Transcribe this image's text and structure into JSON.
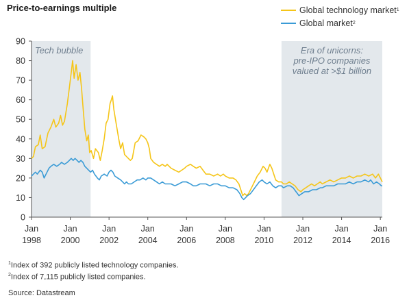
{
  "title": "Price-to-earnings multiple",
  "legend": [
    {
      "label": "Global technology market",
      "sup": "1",
      "color": "#f5c518"
    },
    {
      "label": "Global market",
      "sup": "2",
      "color": "#3a9bd6"
    }
  ],
  "footnotes": [
    {
      "sup": "1",
      "text": "Index of 392 publicly listed technology companies."
    },
    {
      "sup": "2",
      "text": "Index of 7,115 publicly listed companies."
    }
  ],
  "source": "Source: Datastream",
  "chart_data": {
    "type": "line",
    "title": "Price-to-earnings multiple",
    "xlabel": "",
    "ylabel": "",
    "xlim": [
      1998,
      2016.1
    ],
    "ylim": [
      0,
      90
    ],
    "yticks": [
      0,
      10,
      20,
      30,
      40,
      50,
      60,
      70,
      80,
      90
    ],
    "xticks": [
      {
        "value": 1998,
        "line1": "Jan",
        "line2": "1998"
      },
      {
        "value": 2000,
        "line1": "Jan",
        "line2": "2000"
      },
      {
        "value": 2002,
        "line1": "Jan",
        "line2": "2002"
      },
      {
        "value": 2004,
        "line1": "Jan",
        "line2": "2004"
      },
      {
        "value": 2006,
        "line1": "Jan",
        "line2": "2006"
      },
      {
        "value": 2008,
        "line1": "Jan",
        "line2": "2008"
      },
      {
        "value": 2010,
        "line1": "Jan",
        "line2": "2010"
      },
      {
        "value": 2012,
        "line1": "Jan",
        "line2": "2012"
      },
      {
        "value": 2014,
        "line1": "Jan",
        "line2": "2014"
      },
      {
        "value": 2016,
        "line1": "Jan",
        "line2": "2016"
      }
    ],
    "grid": false,
    "shaded_regions": [
      {
        "from": 1998,
        "to": 2001.05,
        "label": [
          "Tech bubble"
        ],
        "label_align": "left"
      },
      {
        "from": 2010.9,
        "to": 2016.1,
        "label": [
          "Era of unicorns:",
          "pre-IPO companies",
          "valued at >$1 billion"
        ],
        "label_align": "center"
      }
    ],
    "series": [
      {
        "name": "Global technology market",
        "color": "#f5c518",
        "points": [
          [
            1998.0,
            30
          ],
          [
            1998.1,
            31
          ],
          [
            1998.2,
            36
          ],
          [
            1998.35,
            37
          ],
          [
            1998.45,
            42
          ],
          [
            1998.55,
            35
          ],
          [
            1998.7,
            36
          ],
          [
            1998.85,
            43
          ],
          [
            1999.0,
            46
          ],
          [
            1999.15,
            50
          ],
          [
            1999.25,
            46
          ],
          [
            1999.4,
            48
          ],
          [
            1999.5,
            52
          ],
          [
            1999.6,
            47
          ],
          [
            1999.7,
            49
          ],
          [
            1999.85,
            58
          ],
          [
            1999.95,
            66
          ],
          [
            2000.05,
            74
          ],
          [
            2000.12,
            80
          ],
          [
            2000.2,
            71
          ],
          [
            2000.3,
            78
          ],
          [
            2000.4,
            70
          ],
          [
            2000.5,
            74
          ],
          [
            2000.58,
            66
          ],
          [
            2000.65,
            57
          ],
          [
            2000.75,
            45
          ],
          [
            2000.85,
            39
          ],
          [
            2000.93,
            42
          ],
          [
            2001.0,
            33
          ],
          [
            2001.08,
            34
          ],
          [
            2001.2,
            30
          ],
          [
            2001.3,
            35
          ],
          [
            2001.45,
            33
          ],
          [
            2001.55,
            29
          ],
          [
            2001.65,
            34
          ],
          [
            2001.75,
            40
          ],
          [
            2001.85,
            48
          ],
          [
            2001.95,
            50
          ],
          [
            2002.05,
            58
          ],
          [
            2002.12,
            60
          ],
          [
            2002.18,
            62
          ],
          [
            2002.25,
            55
          ],
          [
            2002.35,
            49
          ],
          [
            2002.5,
            40
          ],
          [
            2002.6,
            35
          ],
          [
            2002.7,
            38
          ],
          [
            2002.8,
            32
          ],
          [
            2002.9,
            31
          ],
          [
            2003.0,
            30
          ],
          [
            2003.1,
            29
          ],
          [
            2003.2,
            30
          ],
          [
            2003.35,
            38
          ],
          [
            2003.5,
            39
          ],
          [
            2003.65,
            42
          ],
          [
            2003.8,
            41
          ],
          [
            2003.9,
            40
          ],
          [
            2004.0,
            38
          ],
          [
            2004.08,
            35
          ],
          [
            2004.15,
            30
          ],
          [
            2004.3,
            28
          ],
          [
            2004.45,
            27
          ],
          [
            2004.6,
            26
          ],
          [
            2004.75,
            27
          ],
          [
            2004.9,
            26
          ],
          [
            2005.0,
            27
          ],
          [
            2005.2,
            25
          ],
          [
            2005.4,
            24
          ],
          [
            2005.6,
            23
          ],
          [
            2005.75,
            24
          ],
          [
            2005.9,
            25
          ],
          [
            2006.0,
            26
          ],
          [
            2006.2,
            27
          ],
          [
            2006.35,
            26
          ],
          [
            2006.5,
            25
          ],
          [
            2006.7,
            26
          ],
          [
            2006.85,
            24
          ],
          [
            2007.0,
            22
          ],
          [
            2007.2,
            22
          ],
          [
            2007.4,
            21
          ],
          [
            2007.6,
            22
          ],
          [
            2007.75,
            21
          ],
          [
            2007.9,
            22
          ],
          [
            2008.0,
            21
          ],
          [
            2008.2,
            20
          ],
          [
            2008.4,
            20
          ],
          [
            2008.55,
            19
          ],
          [
            2008.7,
            17
          ],
          [
            2008.8,
            14
          ],
          [
            2008.9,
            11
          ],
          [
            2009.0,
            12
          ],
          [
            2009.1,
            11
          ],
          [
            2009.2,
            12
          ],
          [
            2009.35,
            15
          ],
          [
            2009.5,
            18
          ],
          [
            2009.65,
            21
          ],
          [
            2009.8,
            23
          ],
          [
            2009.95,
            26
          ],
          [
            2010.05,
            25
          ],
          [
            2010.15,
            23
          ],
          [
            2010.3,
            27
          ],
          [
            2010.4,
            25
          ],
          [
            2010.5,
            22
          ],
          [
            2010.6,
            19
          ],
          [
            2010.75,
            18
          ],
          [
            2010.9,
            18
          ],
          [
            2011.0,
            17
          ],
          [
            2011.15,
            17
          ],
          [
            2011.3,
            18
          ],
          [
            2011.45,
            17
          ],
          [
            2011.6,
            16
          ],
          [
            2011.75,
            14
          ],
          [
            2011.9,
            13
          ],
          [
            2012.0,
            14
          ],
          [
            2012.15,
            15
          ],
          [
            2012.3,
            16
          ],
          [
            2012.45,
            17
          ],
          [
            2012.6,
            16
          ],
          [
            2012.75,
            17
          ],
          [
            2012.9,
            18
          ],
          [
            2013.0,
            17
          ],
          [
            2013.2,
            18
          ],
          [
            2013.4,
            19
          ],
          [
            2013.6,
            18
          ],
          [
            2013.8,
            19
          ],
          [
            2014.0,
            20
          ],
          [
            2014.2,
            20
          ],
          [
            2014.4,
            21
          ],
          [
            2014.6,
            20
          ],
          [
            2014.8,
            21
          ],
          [
            2015.0,
            21
          ],
          [
            2015.2,
            22
          ],
          [
            2015.4,
            21
          ],
          [
            2015.6,
            22
          ],
          [
            2015.75,
            20
          ],
          [
            2015.9,
            22
          ],
          [
            2016.0,
            20
          ],
          [
            2016.1,
            18
          ]
        ]
      },
      {
        "name": "Global market",
        "color": "#3a9bd6",
        "points": [
          [
            1998.0,
            21
          ],
          [
            1998.1,
            22
          ],
          [
            1998.2,
            23
          ],
          [
            1998.3,
            22
          ],
          [
            1998.45,
            24
          ],
          [
            1998.55,
            23
          ],
          [
            1998.65,
            20
          ],
          [
            1998.75,
            22
          ],
          [
            1998.9,
            25
          ],
          [
            1999.0,
            26
          ],
          [
            1999.15,
            27
          ],
          [
            1999.3,
            26
          ],
          [
            1999.45,
            27
          ],
          [
            1999.55,
            28
          ],
          [
            1999.7,
            27
          ],
          [
            1999.85,
            28
          ],
          [
            1999.95,
            29
          ],
          [
            2000.05,
            30
          ],
          [
            2000.15,
            29
          ],
          [
            2000.25,
            30
          ],
          [
            2000.35,
            29
          ],
          [
            2000.45,
            28
          ],
          [
            2000.55,
            29
          ],
          [
            2000.65,
            28
          ],
          [
            2000.75,
            26
          ],
          [
            2000.85,
            25
          ],
          [
            2000.95,
            24
          ],
          [
            2001.05,
            23
          ],
          [
            2001.15,
            24
          ],
          [
            2001.25,
            22
          ],
          [
            2001.4,
            20
          ],
          [
            2001.5,
            19
          ],
          [
            2001.6,
            21
          ],
          [
            2001.75,
            22
          ],
          [
            2001.9,
            21
          ],
          [
            2002.0,
            23
          ],
          [
            2002.1,
            24
          ],
          [
            2002.2,
            23
          ],
          [
            2002.3,
            21
          ],
          [
            2002.45,
            20
          ],
          [
            2002.6,
            19
          ],
          [
            2002.7,
            18
          ],
          [
            2002.8,
            17
          ],
          [
            2002.9,
            18
          ],
          [
            2003.0,
            17
          ],
          [
            2003.15,
            17
          ],
          [
            2003.3,
            18
          ],
          [
            2003.45,
            19
          ],
          [
            2003.6,
            19
          ],
          [
            2003.75,
            20
          ],
          [
            2003.9,
            19
          ],
          [
            2004.0,
            20
          ],
          [
            2004.15,
            20
          ],
          [
            2004.3,
            19
          ],
          [
            2004.45,
            18
          ],
          [
            2004.6,
            17
          ],
          [
            2004.75,
            18
          ],
          [
            2004.9,
            17
          ],
          [
            2005.0,
            17
          ],
          [
            2005.2,
            17
          ],
          [
            2005.4,
            16
          ],
          [
            2005.6,
            17
          ],
          [
            2005.8,
            18
          ],
          [
            2006.0,
            18
          ],
          [
            2006.2,
            17
          ],
          [
            2006.35,
            16
          ],
          [
            2006.5,
            16
          ],
          [
            2006.7,
            17
          ],
          [
            2006.9,
            17
          ],
          [
            2007.0,
            17
          ],
          [
            2007.2,
            16
          ],
          [
            2007.4,
            17
          ],
          [
            2007.6,
            17
          ],
          [
            2007.8,
            16
          ],
          [
            2008.0,
            16
          ],
          [
            2008.2,
            15
          ],
          [
            2008.4,
            15
          ],
          [
            2008.6,
            14
          ],
          [
            2008.75,
            12
          ],
          [
            2008.85,
            10
          ],
          [
            2008.95,
            9
          ],
          [
            2009.05,
            10
          ],
          [
            2009.15,
            11
          ],
          [
            2009.3,
            12
          ],
          [
            2009.45,
            14
          ],
          [
            2009.6,
            16
          ],
          [
            2009.75,
            18
          ],
          [
            2009.9,
            19
          ],
          [
            2010.0,
            18
          ],
          [
            2010.15,
            17
          ],
          [
            2010.3,
            18
          ],
          [
            2010.45,
            16
          ],
          [
            2010.6,
            15
          ],
          [
            2010.75,
            16
          ],
          [
            2010.9,
            16
          ],
          [
            2011.0,
            15
          ],
          [
            2011.2,
            16
          ],
          [
            2011.35,
            16
          ],
          [
            2011.5,
            15
          ],
          [
            2011.65,
            13
          ],
          [
            2011.8,
            11
          ],
          [
            2011.95,
            12
          ],
          [
            2012.1,
            13
          ],
          [
            2012.3,
            13
          ],
          [
            2012.5,
            14
          ],
          [
            2012.7,
            14
          ],
          [
            2012.9,
            15
          ],
          [
            2013.0,
            15
          ],
          [
            2013.2,
            16
          ],
          [
            2013.4,
            16
          ],
          [
            2013.6,
            16
          ],
          [
            2013.8,
            17
          ],
          [
            2014.0,
            17
          ],
          [
            2014.2,
            17
          ],
          [
            2014.4,
            18
          ],
          [
            2014.6,
            17
          ],
          [
            2014.8,
            18
          ],
          [
            2015.0,
            18
          ],
          [
            2015.2,
            19
          ],
          [
            2015.4,
            18
          ],
          [
            2015.5,
            19
          ],
          [
            2015.65,
            17
          ],
          [
            2015.8,
            18
          ],
          [
            2015.95,
            17
          ],
          [
            2016.05,
            16
          ],
          [
            2016.1,
            16
          ]
        ]
      }
    ]
  }
}
